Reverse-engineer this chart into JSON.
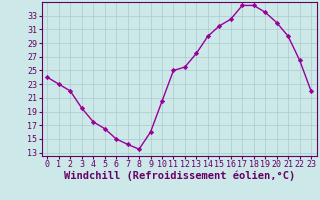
{
  "x": [
    0,
    1,
    2,
    3,
    4,
    5,
    6,
    7,
    8,
    9,
    10,
    11,
    12,
    13,
    14,
    15,
    16,
    17,
    18,
    19,
    20,
    21,
    22,
    23
  ],
  "y": [
    24,
    23,
    22,
    19.5,
    17.5,
    16.5,
    15,
    14.2,
    13.5,
    16,
    20.5,
    25,
    25.5,
    27.5,
    30,
    31.5,
    32.5,
    34.5,
    34.5,
    33.5,
    32,
    30,
    26.5,
    22
  ],
  "line_color": "#990099",
  "marker": "D",
  "markersize": 2.2,
  "linewidth": 1.0,
  "bg_color": "#cce8e8",
  "grid_color": "#aacccc",
  "xlabel": "Windchill (Refroidissement éolien,°C)",
  "xlabel_color": "#660066",
  "xlabel_fontsize": 7.5,
  "yticks": [
    13,
    15,
    17,
    19,
    21,
    23,
    25,
    27,
    29,
    31,
    33
  ],
  "xlim": [
    -0.5,
    23.5
  ],
  "ylim": [
    12.5,
    35.0
  ],
  "tick_color": "#660066",
  "tick_fontsize": 6.0,
  "spine_color": "#660066"
}
